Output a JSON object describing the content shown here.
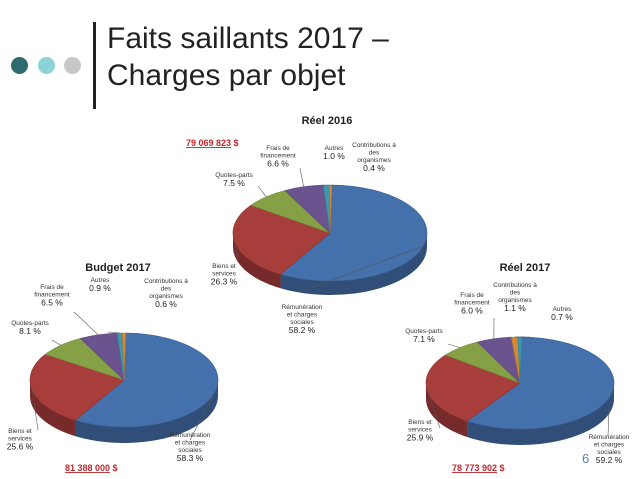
{
  "slide": {
    "title_line1": "Faits saillants 2017 –",
    "title_line2": "Charges par objet",
    "page_number": "6"
  },
  "colors": {
    "dots": [
      "#2e6b6e",
      "#8dd3d6",
      "#c7c7c7"
    ],
    "text": "#222222",
    "total": "#c0272d"
  },
  "chart_data": [
    {
      "id": "reel2016",
      "type": "pie",
      "title": "Réel 2016",
      "total": "79 069 823",
      "currency": "$",
      "slices": [
        {
          "label": "Rémunération et charges sociales",
          "value": 58.2,
          "display": "58.2 %",
          "color": "#4470ab"
        },
        {
          "label": "Biens et services",
          "value": 26.3,
          "display": "26.3 %",
          "color": "#a83e3c"
        },
        {
          "label": "Quotes-parts",
          "value": 7.5,
          "display": "7.5 %",
          "color": "#86a045"
        },
        {
          "label": "Frais de financement",
          "value": 6.6,
          "display": "6.6 %",
          "color": "#6b5390"
        },
        {
          "label": "Autres",
          "value": 1.0,
          "display": "1.0 %",
          "color": "#3d98ae"
        },
        {
          "label": "Contributions à des organismes",
          "value": 0.4,
          "display": "0.4 %",
          "color": "#d7892f"
        }
      ]
    },
    {
      "id": "budget2017",
      "type": "pie",
      "title": "Budget 2017",
      "total": "81 388 000",
      "currency": "$",
      "slices": [
        {
          "label": "Rémunération et charges sociales",
          "value": 58.3,
          "display": "58.3 %",
          "color": "#4470ab"
        },
        {
          "label": "Biens et services",
          "value": 25.6,
          "display": "25.6 %",
          "color": "#a83e3c"
        },
        {
          "label": "Quotes-parts",
          "value": 8.1,
          "display": "8.1 %",
          "color": "#86a045"
        },
        {
          "label": "Frais de financement",
          "value": 6.5,
          "display": "6.5 %",
          "color": "#6b5390"
        },
        {
          "label": "Autres",
          "value": 0.9,
          "display": "0.9 %",
          "color": "#3d98ae"
        },
        {
          "label": "Contributions à des organismes",
          "value": 0.6,
          "display": "0.6 %",
          "color": "#d7892f"
        }
      ]
    },
    {
      "id": "reel2017",
      "type": "pie",
      "title": "Réel 2017",
      "total": "78 773 902",
      "currency": "$",
      "slices": [
        {
          "label": "Rémunération et charges sociales",
          "value": 59.2,
          "display": "59.2 %",
          "color": "#4470ab"
        },
        {
          "label": "Biens et services",
          "value": 25.9,
          "display": "25.9 %",
          "color": "#a83e3c"
        },
        {
          "label": "Quotes-parts",
          "value": 7.1,
          "display": "7.1 %",
          "color": "#86a045"
        },
        {
          "label": "Frais de financement",
          "value": 6.0,
          "display": "6.0 %",
          "color": "#6b5390"
        },
        {
          "label": "Contributions à des organismes",
          "value": 1.1,
          "display": "1.1 %",
          "color": "#d7892f"
        },
        {
          "label": "Autres",
          "value": 0.7,
          "display": "0.7 %",
          "color": "#3d98ae"
        }
      ]
    }
  ]
}
